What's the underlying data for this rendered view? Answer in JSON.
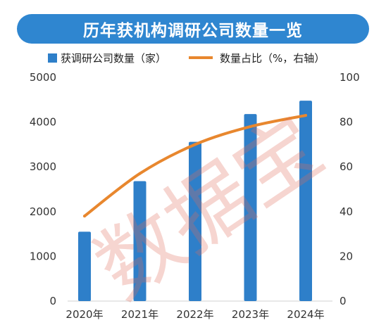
{
  "title": "历年获机构调研公司数量一览",
  "watermark": "数据宝",
  "colors": {
    "banner": "#2f86d0",
    "bar": "#2e7fc9",
    "line": "#e8872e"
  },
  "chart_data": {
    "type": "bar",
    "categories": [
      "2020年",
      "2021年",
      "2022年",
      "2023年",
      "2024年"
    ],
    "series": [
      {
        "name": "获调研公司数量（家）",
        "type": "bar",
        "axis": "left",
        "values": [
          1550,
          2680,
          3560,
          4180,
          4480
        ]
      },
      {
        "name": "数量占比（%，右轴）",
        "type": "line",
        "axis": "right",
        "values": [
          38,
          57,
          70,
          78,
          83
        ]
      }
    ],
    "y_left": {
      "lim": [
        0,
        5000
      ],
      "ticks": [
        "0",
        "1000",
        "2000",
        "3000",
        "4000",
        "5000"
      ]
    },
    "y_right": {
      "lim": [
        0,
        100
      ],
      "ticks": [
        "0",
        "20",
        "40",
        "60",
        "80",
        "100"
      ]
    },
    "legend_position": "top",
    "grid": false
  }
}
